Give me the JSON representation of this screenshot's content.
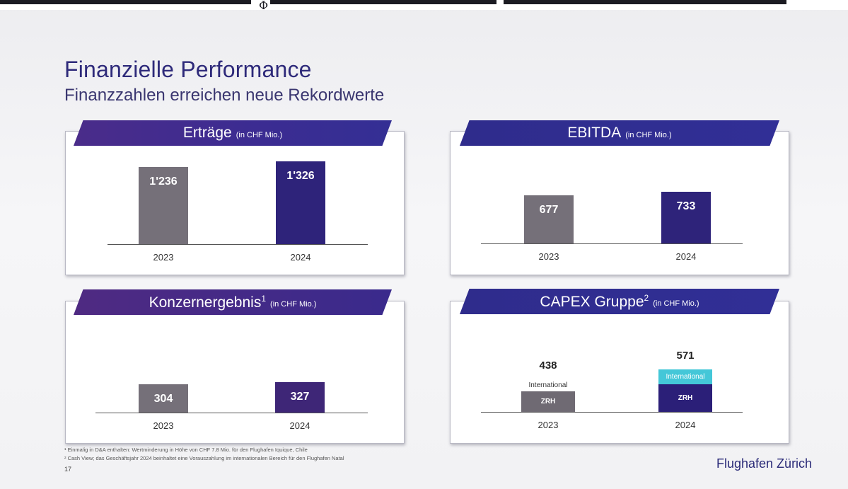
{
  "slide": {
    "title": "Finanzielle Performance",
    "subtitle": "Finanzzahlen erreichen neue Rekordwerte",
    "page_number": "17",
    "brand": "Flughafen Zürich",
    "footnotes": [
      "¹ Einmalig in D&A enthalten: Wertminderung in Höhe von CHF 7.8 Mio. für den Flughafen Iquique, Chile",
      "² Cash View; das Geschäftsjahr 2024 beinhaltet eine Vorauszahlung im internationalen Bereich für den Flughafen Natal"
    ],
    "colors": {
      "bar_2023": "#757079",
      "bar_2024": "#2e237a",
      "international_2024": "#44c7d8"
    }
  },
  "chart_data": [
    {
      "type": "bar",
      "title": "Erträge",
      "unit_note": "(in CHF Mio.)",
      "categories": [
        "2023",
        "2024"
      ],
      "values": [
        1236,
        1326
      ],
      "value_labels": [
        "1'236",
        "1'326"
      ]
    },
    {
      "type": "bar",
      "title": "EBITDA",
      "unit_note": "(in CHF Mio.)",
      "categories": [
        "2023",
        "2024"
      ],
      "values": [
        677,
        733
      ],
      "value_labels": [
        "677",
        "733"
      ]
    },
    {
      "type": "bar",
      "title": "Konzernergebnis",
      "title_sup": "1",
      "unit_note": "(in CHF Mio.)",
      "categories": [
        "2023",
        "2024"
      ],
      "values": [
        304,
        327
      ],
      "value_labels": [
        "304",
        "327"
      ]
    },
    {
      "type": "bar",
      "stacked": true,
      "title": "CAPEX Gruppe",
      "title_sup": "2",
      "unit_note": "(in CHF Mio.)",
      "categories": [
        "2023",
        "2024"
      ],
      "totals": [
        438,
        571
      ],
      "total_labels": [
        "438",
        "571"
      ],
      "series": [
        {
          "name": "ZRH",
          "values": [
            280,
            375
          ]
        },
        {
          "name": "International",
          "values": [
            158,
            196
          ]
        }
      ]
    }
  ]
}
